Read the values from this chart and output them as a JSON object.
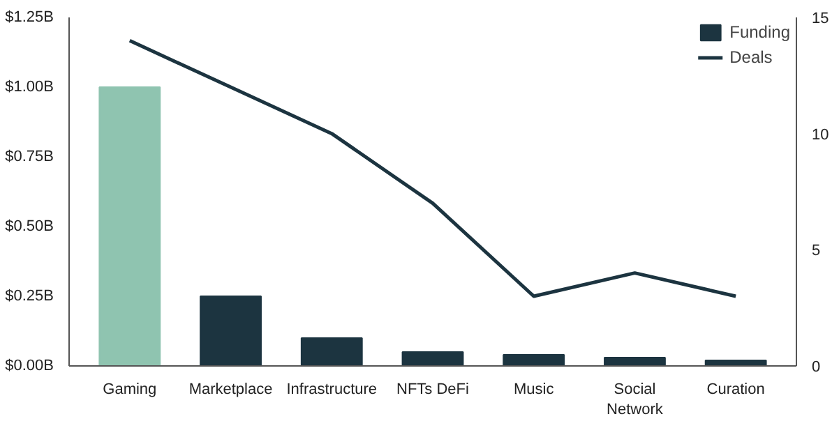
{
  "chart_data": {
    "type": "bar",
    "categories": [
      "Gaming",
      "Marketplace",
      "Infrastructure",
      "NFTs DeFi",
      "Music",
      "Social\nNetwork",
      "Curation"
    ],
    "series": [
      {
        "name": "Funding",
        "color": "#1c3440",
        "colors": [
          "#8fc4b0",
          "#1c3440",
          "#1c3440",
          "#1c3440",
          "#1c3440",
          "#1c3440",
          "#1c3440"
        ],
        "values": [
          1.0,
          0.25,
          0.1,
          0.05,
          0.04,
          0.03,
          0.02
        ]
      },
      {
        "name": "Deals",
        "type": "line",
        "axis": "y2",
        "color": "#1c3440",
        "values": [
          14,
          12,
          10,
          7,
          3,
          4,
          3
        ]
      }
    ],
    "ylim": [
      0,
      1.25
    ],
    "yticks": [
      {
        "value": 0,
        "label": "$0.00B"
      },
      {
        "value": 0.25,
        "label": "$0.25B"
      },
      {
        "value": 0.5,
        "label": "$0.50B"
      },
      {
        "value": 0.75,
        "label": "$0.75B"
      },
      {
        "value": 1.0,
        "label": "$1.00B"
      },
      {
        "value": 1.25,
        "label": "$1.25B"
      }
    ],
    "y2lim": [
      0,
      15
    ],
    "y2ticks": [
      0,
      5,
      10,
      15
    ],
    "grid": false,
    "legend": "top right"
  }
}
